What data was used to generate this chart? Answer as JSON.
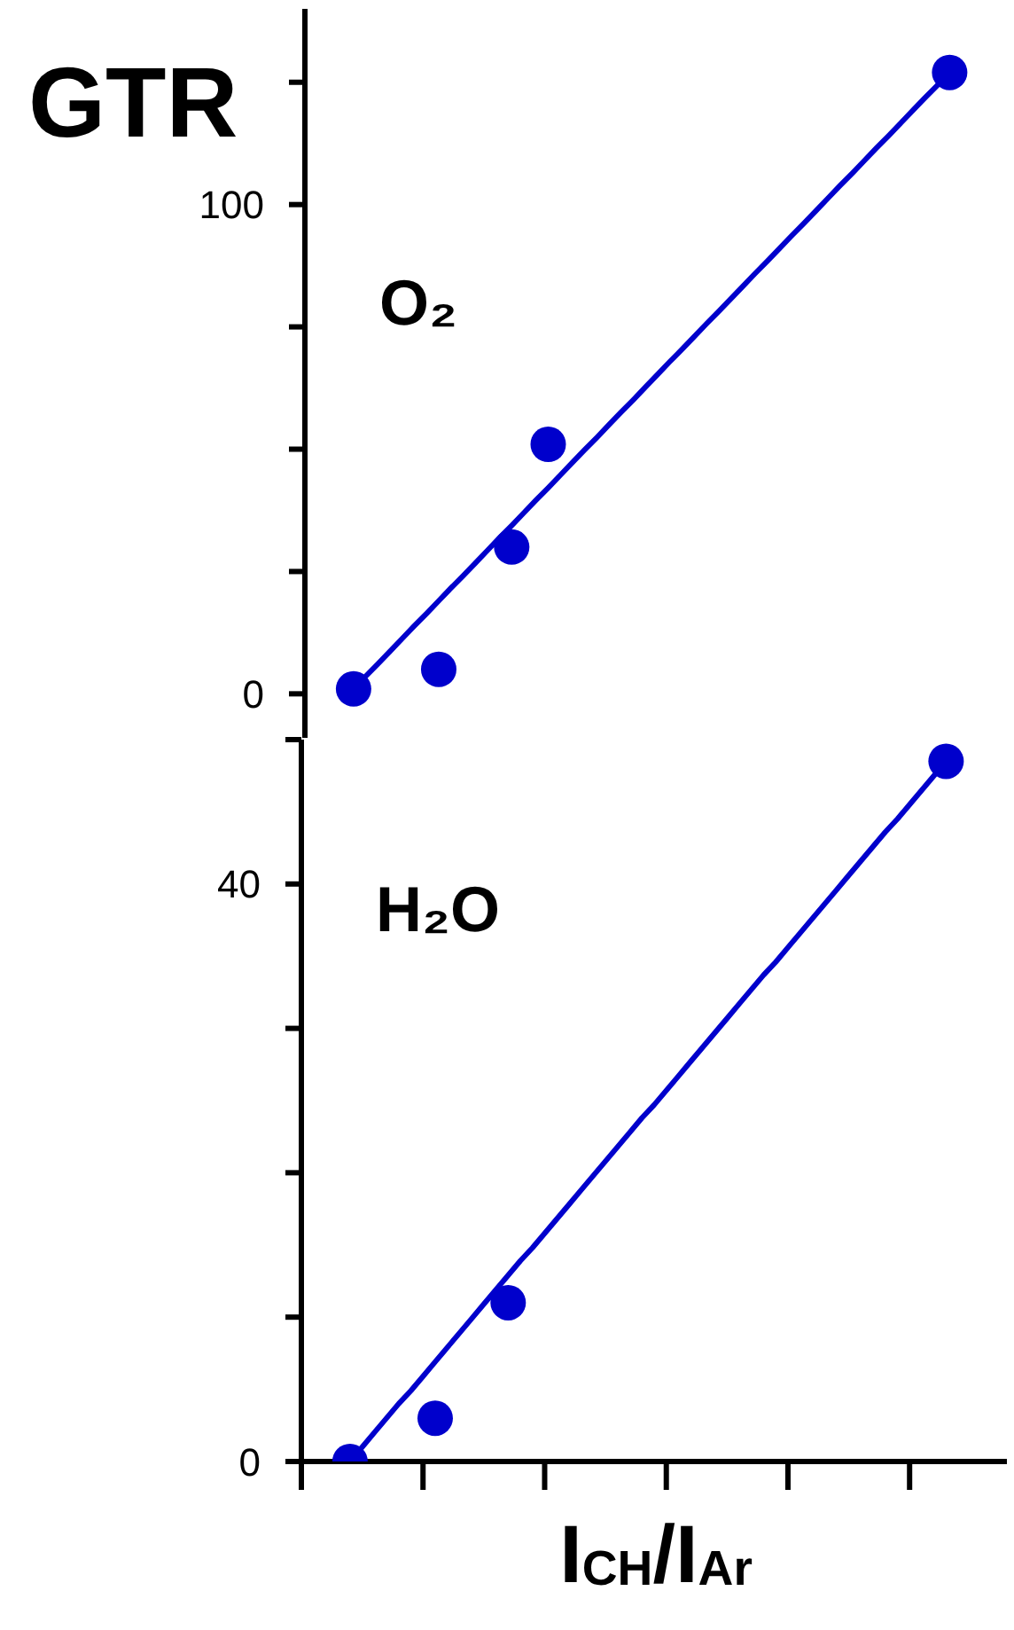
{
  "chart_data": [
    {
      "type": "scatter",
      "title": "O₂",
      "ylabel": "GTR",
      "categories": [
        null,
        null,
        null,
        null,
        null,
        null,
        null,
        null,
        null,
        null,
        null,
        null,
        null,
        null,
        null,
        null,
        null,
        null,
        null,
        null,
        null,
        null,
        null,
        null,
        null,
        null,
        null,
        null,
        null,
        null,
        null,
        null,
        null,
        null,
        null,
        null,
        null,
        null,
        null,
        null,
        null,
        null,
        null,
        null,
        null,
        null,
        null,
        null,
        null,
        null,
        null,
        null,
        null,
        null,
        null,
        null,
        null,
        null,
        null
      ],
      "ylim": [
        -9,
        140
      ],
      "yticks": [
        0,
        {
          "value": 25,
          "label": null
        },
        {
          "value": 50,
          "label": null
        },
        {
          "value": 75,
          "label": null
        },
        100,
        {
          "value": 125,
          "label": null
        }
      ],
      "marker": "circle",
      "series": [
        {
          "color": "#0000cc",
          "values": [
            null,
            null,
            null,
            null,
            1,
            null,
            null,
            null,
            null,
            null,
            null,
            5,
            null,
            null,
            null,
            null,
            null,
            30,
            null,
            null,
            51,
            null,
            null,
            null,
            null,
            null,
            null,
            null,
            null,
            null,
            null,
            null,
            null,
            null,
            null,
            null,
            null,
            null,
            null,
            null,
            null,
            null,
            null,
            null,
            null,
            null,
            null,
            null,
            null,
            null,
            null,
            null,
            null,
            127,
            null,
            null,
            null,
            null,
            null
          ]
        },
        {
          "type": "line",
          "color": "#0000cc",
          "marker": "none",
          "values": [
            null,
            null,
            null,
            null,
            1,
            3.6,
            6.1,
            8.7,
            11.3,
            13.9,
            16.4,
            19,
            21.6,
            24.1,
            26.7,
            29.3,
            31.9,
            34.4,
            37,
            39.6,
            42.1,
            44.7,
            47.3,
            49.9,
            52.4,
            55,
            57.6,
            60.1,
            62.7,
            65.3,
            67.9,
            70.4,
            73,
            75.6,
            78.1,
            80.7,
            83.3,
            85.9,
            88.4,
            91,
            93.6,
            96.1,
            98.7,
            101.3,
            103.9,
            106.4,
            109,
            111.6,
            114.1,
            116.7,
            119.3,
            121.9,
            124.4,
            127,
            null,
            null,
            null,
            null,
            null
          ]
        }
      ]
    },
    {
      "type": "scatter",
      "title": "H₂O",
      "xlabel": "I$_{CH}$/I$_{Ar}$",
      "categories": [
        null,
        null,
        null,
        null,
        null,
        null,
        null,
        null,
        null,
        null,
        null,
        null,
        null,
        null,
        null,
        null,
        null,
        null,
        null,
        null,
        null,
        null,
        null,
        null,
        null,
        null,
        null,
        null,
        null,
        null,
        null,
        null,
        null,
        null,
        null,
        null,
        null,
        null,
        null,
        null,
        null,
        null,
        null,
        null,
        null,
        null,
        null,
        null,
        null,
        null,
        null,
        null,
        null,
        null,
        null,
        null,
        null,
        null,
        null
      ],
      "ylim": [
        0,
        50
      ],
      "yticks": [
        0,
        {
          "value": 10,
          "label": null
        },
        {
          "value": 20,
          "label": null
        },
        {
          "value": 30,
          "label": null
        },
        40,
        {
          "value": 50,
          "label": null
        }
      ],
      "marker": "circle",
      "series": [
        {
          "color": "#0000cc",
          "values": [
            null,
            null,
            null,
            null,
            0,
            null,
            null,
            null,
            null,
            null,
            null,
            3,
            null,
            null,
            null,
            null,
            null,
            11,
            null,
            null,
            null,
            null,
            null,
            null,
            null,
            null,
            null,
            null,
            null,
            null,
            null,
            null,
            null,
            null,
            null,
            null,
            null,
            null,
            null,
            null,
            null,
            null,
            null,
            null,
            null,
            null,
            null,
            null,
            null,
            null,
            null,
            null,
            null,
            48.5,
            null,
            null,
            null,
            null,
            null
          ]
        },
        {
          "type": "line",
          "color": "#0000cc",
          "marker": "none",
          "values": [
            null,
            null,
            null,
            null,
            0,
            1,
            2,
            3,
            4,
            4.9,
            5.9,
            6.9,
            7.9,
            8.9,
            9.9,
            10.9,
            11.9,
            12.9,
            13.9,
            14.8,
            15.8,
            16.8,
            17.8,
            18.8,
            19.8,
            20.8,
            21.8,
            22.8,
            23.8,
            24.7,
            25.7,
            26.7,
            27.7,
            28.7,
            29.7,
            30.7,
            31.7,
            32.7,
            33.7,
            34.6,
            35.6,
            36.6,
            37.6,
            38.6,
            39.6,
            40.6,
            41.6,
            42.6,
            43.6,
            44.5,
            45.5,
            46.5,
            47.5,
            48.5,
            null,
            null,
            null,
            null,
            null
          ]
        }
      ]
    }
  ]
}
